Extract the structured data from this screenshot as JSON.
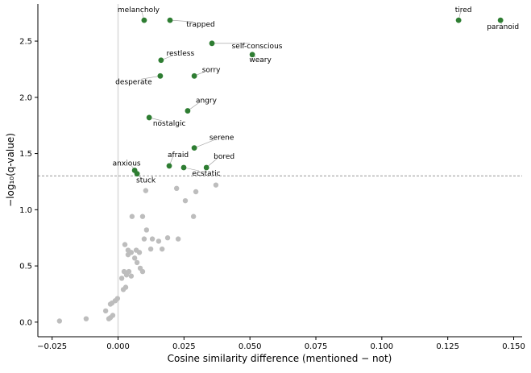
{
  "chart_data": {
    "type": "scatter",
    "title": "",
    "xlabel": "Cosine similarity difference (mentioned − not)",
    "ylabel": "−log₁₀(q-value)",
    "xlim": [
      -0.0304,
      0.1532
    ],
    "ylim": [
      -0.13,
      2.83
    ],
    "xticks": [
      -0.025,
      0.0,
      0.025,
      0.05,
      0.075,
      0.1,
      0.125,
      0.15
    ],
    "xtick_labels": [
      "−0.025",
      "0.000",
      "0.025",
      "0.050",
      "0.075",
      "0.100",
      "0.125",
      "0.150"
    ],
    "yticks": [
      0.0,
      0.5,
      1.0,
      1.5,
      2.0,
      2.5
    ],
    "ytick_labels": [
      "0.0",
      "0.5",
      "1.0",
      "1.5",
      "2.0",
      "2.5"
    ],
    "grid": false,
    "reference_lines": {
      "vertical_x": 0.0,
      "horizontal_y": 1.301
    },
    "colors": {
      "significant": "#2e7d32",
      "nonsignificant": "#bdbdbd",
      "vline": "#d9d9d9",
      "hline": "#888888"
    },
    "significant": [
      {
        "label": "melancholy",
        "x": 0.0099,
        "y": 2.686
      },
      {
        "label": "trapped",
        "x": 0.0197,
        "y": 2.686
      },
      {
        "label": "tired",
        "x": 0.1291,
        "y": 2.686
      },
      {
        "label": "paranoid",
        "x": 0.145,
        "y": 2.686
      },
      {
        "label": "self-conscious",
        "x": 0.0356,
        "y": 2.48
      },
      {
        "label": "weary",
        "x": 0.0509,
        "y": 2.38
      },
      {
        "label": "restless",
        "x": 0.0163,
        "y": 2.33
      },
      {
        "label": "desperate",
        "x": 0.016,
        "y": 2.19
      },
      {
        "label": "sorry",
        "x": 0.0289,
        "y": 2.19
      },
      {
        "label": "angry",
        "x": 0.0264,
        "y": 1.88
      },
      {
        "label": "nostalgic",
        "x": 0.0118,
        "y": 1.82
      },
      {
        "label": "serene",
        "x": 0.0289,
        "y": 1.55
      },
      {
        "label": "afraid",
        "x": 0.0194,
        "y": 1.39
      },
      {
        "label": "ecstatic",
        "x": 0.0249,
        "y": 1.375
      },
      {
        "label": "bored",
        "x": 0.0335,
        "y": 1.375
      },
      {
        "label": "anxious",
        "x": 0.0063,
        "y": 1.35
      },
      {
        "label": "stuck",
        "x": 0.0072,
        "y": 1.32
      }
    ],
    "nonsignificant": [
      [
        0.0105,
        1.17
      ],
      [
        0.0222,
        1.19
      ],
      [
        0.0295,
        1.16
      ],
      [
        0.0371,
        1.22
      ],
      [
        0.0255,
        1.08
      ],
      [
        0.0053,
        0.94
      ],
      [
        0.0093,
        0.94
      ],
      [
        0.0286,
        0.94
      ],
      [
        0.0108,
        0.82
      ],
      [
        0.0099,
        0.74
      ],
      [
        0.013,
        0.74
      ],
      [
        0.0154,
        0.72
      ],
      [
        0.0188,
        0.75
      ],
      [
        0.0228,
        0.74
      ],
      [
        0.0124,
        0.65
      ],
      [
        0.0167,
        0.65
      ],
      [
        0.0026,
        0.69
      ],
      [
        0.0038,
        0.64
      ],
      [
        0.0038,
        0.6
      ],
      [
        0.005,
        0.62
      ],
      [
        0.0069,
        0.64
      ],
      [
        0.0081,
        0.62
      ],
      [
        0.0063,
        0.57
      ],
      [
        0.0072,
        0.53
      ],
      [
        0.0084,
        0.48
      ],
      [
        0.0093,
        0.45
      ],
      [
        0.0023,
        0.45
      ],
      [
        0.0041,
        0.45
      ],
      [
        0.0032,
        0.42
      ],
      [
        0.005,
        0.41
      ],
      [
        0.0014,
        0.39
      ],
      [
        0.0029,
        0.31
      ],
      [
        0.002,
        0.29
      ],
      [
        -0.0002,
        0.21
      ],
      [
        -0.0011,
        0.19
      ],
      [
        -0.0023,
        0.17
      ],
      [
        -0.0029,
        0.16
      ],
      [
        -0.0047,
        0.1
      ],
      [
        -0.002,
        0.06
      ],
      [
        -0.0029,
        0.04
      ],
      [
        -0.0035,
        0.03
      ],
      [
        -0.0121,
        0.03
      ],
      [
        -0.0222,
        0.01
      ]
    ]
  }
}
